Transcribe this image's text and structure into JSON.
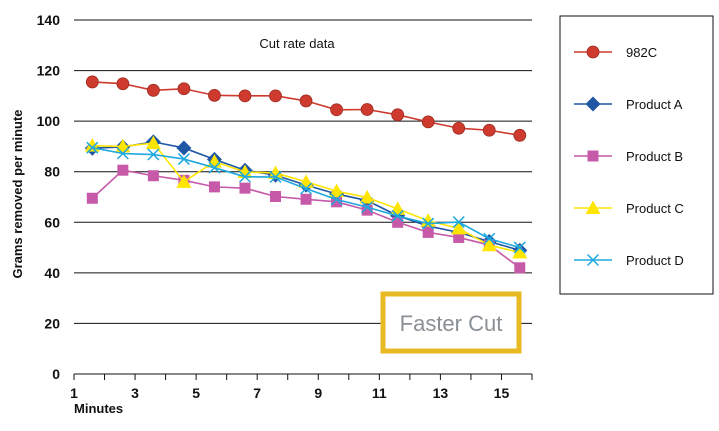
{
  "chart_data": {
    "type": "line",
    "title": "Cut rate data",
    "xlabel": "Minutes",
    "ylabel": "Grams removed per minute",
    "xlim": [
      1,
      16
    ],
    "ylim": [
      0,
      140
    ],
    "x_ticks": [
      "1",
      "3",
      "5",
      "7",
      "9",
      "11",
      "13",
      "15"
    ],
    "y_ticks": [
      "0",
      "20",
      "40",
      "60",
      "80",
      "100",
      "120",
      "140"
    ],
    "grid": "horizontal",
    "legend_position": "right",
    "annotation": "Faster Cut",
    "annotation_color": "#E8B923",
    "x": [
      1.6,
      2.6,
      3.6,
      4.6,
      5.6,
      6.6,
      7.6,
      8.6,
      9.6,
      10.6,
      11.6,
      12.6,
      13.6,
      14.6,
      15.6
    ],
    "series": [
      {
        "name": "982C",
        "color": "#CE3B2E",
        "marker": "circle",
        "values": [
          115.5,
          114.8,
          112.2,
          112.8,
          110.2,
          110.0,
          110.0,
          108.0,
          104.5,
          104.6,
          102.5,
          99.7,
          97.2,
          96.4,
          94.4
        ]
      },
      {
        "name": "Product A",
        "color": "#1F57A4",
        "marker": "diamond",
        "values": [
          89.3,
          89.8,
          91.8,
          89.4,
          84.9,
          80.6,
          78.6,
          74.7,
          71.2,
          68.6,
          62.6,
          58.5,
          56.0,
          52.4,
          48.9
        ]
      },
      {
        "name": "Product B",
        "color": "#C659A8",
        "marker": "square",
        "values": [
          69.5,
          80.6,
          78.4,
          76.6,
          74.0,
          73.5,
          70.2,
          69.1,
          68.1,
          64.8,
          60.0,
          56.0,
          54.0,
          51.0,
          42.0
        ]
      },
      {
        "name": "Product C",
        "color": "#FFE500",
        "marker": "triangle",
        "values": [
          90.3,
          90.0,
          91.3,
          76.0,
          84.0,
          79.9,
          79.5,
          76.0,
          72.3,
          69.8,
          65.3,
          60.6,
          57.6,
          50.9,
          48.1
        ]
      },
      {
        "name": "Product D",
        "color": "#1EA8DF",
        "marker": "x",
        "values": [
          89.5,
          87.2,
          86.8,
          85.0,
          81.6,
          78.0,
          77.9,
          73.3,
          69.0,
          66.0,
          62.5,
          59.5,
          60.1,
          53.5,
          50.0
        ]
      }
    ]
  }
}
